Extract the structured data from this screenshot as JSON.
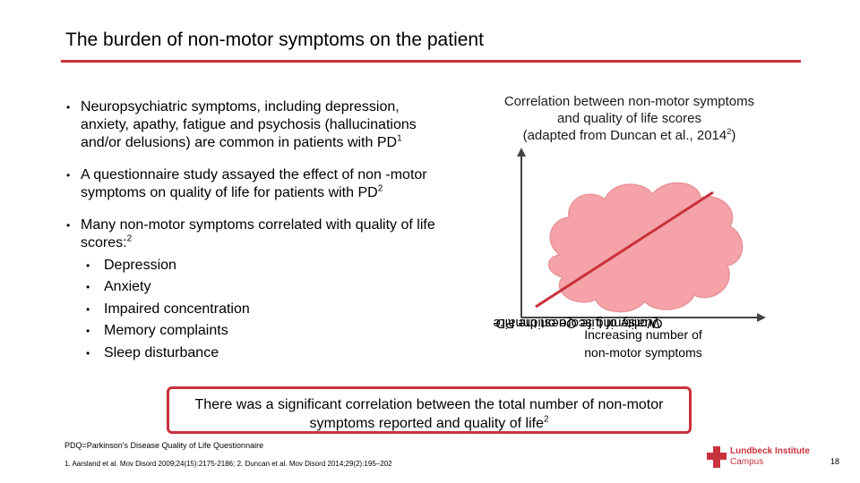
{
  "header": {
    "title": "The burden of non-motor symptoms on the patient"
  },
  "bullets": [
    {
      "text": "Neuropsychiatric symptoms, including depression, anxiety, apathy, fatigue and psychosis (hallucinations and/or delusions) are common in patients with PD",
      "sup": "1"
    },
    {
      "text": "A questionnaire study assayed the effect of non -motor symptoms on quality of life for patients with PD",
      "sup": "2"
    },
    {
      "text": "Many non-motor symptoms correlated with quality of life scores:",
      "sup": "2",
      "subitems": [
        "Depression",
        "Anxiety",
        "Impaired concentration",
        "Memory complaints",
        "Sleep disturbance"
      ]
    }
  ],
  "figure": {
    "title_lines": [
      "Correlation between non-motor symptoms",
      "and quality of life scores"
    ],
    "caption": "(adapted from Duncan et al., 2014",
    "caption_sup": "2",
    "caption_end": ")",
    "y_label_lines": [
      "Worsening score on the PD",
      "Quality of Life Questionnaire"
    ],
    "x_label_lines": [
      "Increasing number of",
      "non-motor symptoms"
    ]
  },
  "callout": {
    "text": "There was a significant correlation between the total number of non-motor symptoms reported and quality of life",
    "sup": "2"
  },
  "footer": {
    "abbreviation": "PDQ=Parkinson's Disease Quality of Life Questionnaire",
    "references": "1. Aarsland et al. Mov Disord 2009;24(15):2175-2186; 2. Duncan et al. Mov Disord 2014;29(2):195–202",
    "logo_name": "Lundbeck Institute",
    "logo_sub": "Campus",
    "page_number": 18
  }
}
